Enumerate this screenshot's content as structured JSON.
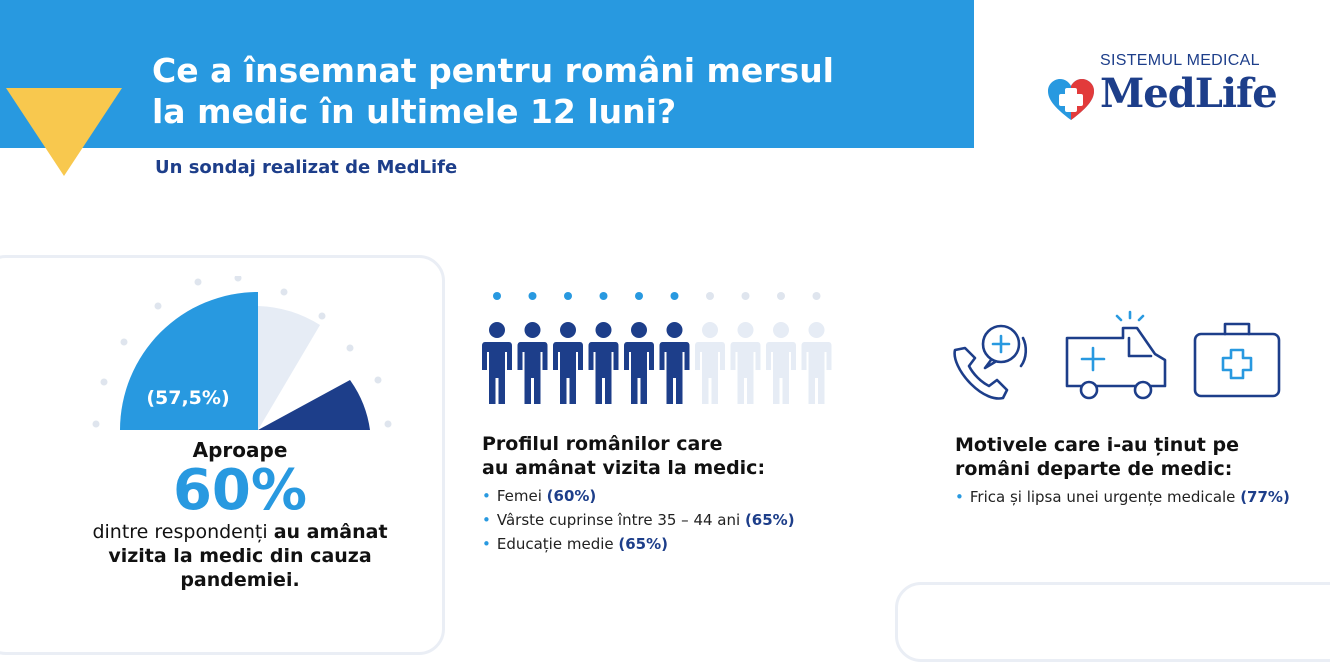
{
  "header": {
    "title_line1": "Ce a însemnat pentru români mersul",
    "title_line2": "la medic în ultimele 12 luni?",
    "subtitle": "Un sondaj realizat de MedLife"
  },
  "logo": {
    "top": "SISTEMUL MEDICAL",
    "name": "MedLife"
  },
  "colors": {
    "banner": "#2899e0",
    "navy": "#1d3e8a",
    "yellow": "#f8c84e",
    "light": "#e6ecf5"
  },
  "stat": {
    "pie_label": "(57,5%)",
    "pie_value": 57.5,
    "aproape": "Aproape",
    "big": "60%",
    "desc_normal": "dintre respondenți ",
    "desc_bold": "au amânat vizita la medic din cauza pandemiei."
  },
  "profile": {
    "people_total": 10,
    "people_highlighted": 6,
    "heading_line1": "Profilul românilor care",
    "heading_line2": "au amânat vizita la medic:",
    "items": [
      {
        "text": "Femei ",
        "pct": "(60%)"
      },
      {
        "text": "Vârste cuprinse între 35 – 44 ani ",
        "pct": "(65%)"
      },
      {
        "text": "Educație medie ",
        "pct": "(65%)"
      }
    ]
  },
  "motive": {
    "icons": [
      "phone-consult-icon",
      "ambulance-icon",
      "first-aid-kit-icon"
    ],
    "heading_line1": "Motivele care i-au ținut pe",
    "heading_line2": "români departe de medic:",
    "items": [
      {
        "text": "Frica și lipsa unei urgențe medicale ",
        "pct": "(77%)"
      }
    ]
  }
}
